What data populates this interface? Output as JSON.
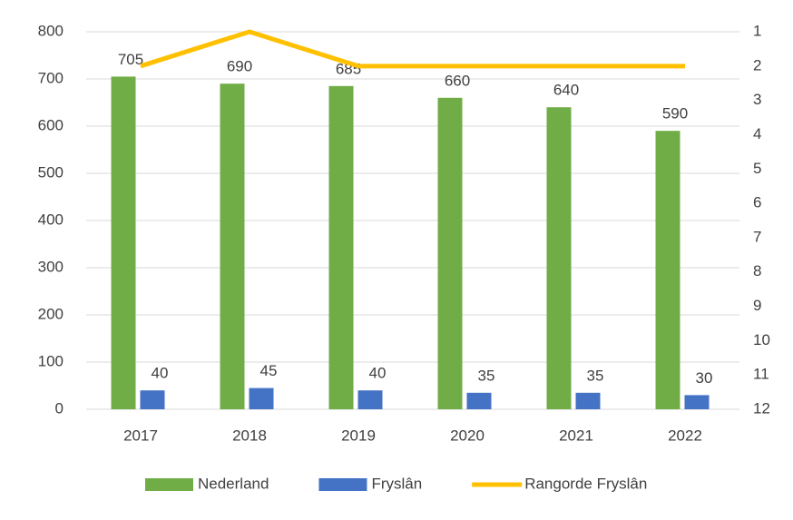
{
  "chart_data": {
    "type": "bar",
    "categories": [
      "2017",
      "2018",
      "2019",
      "2020",
      "2021",
      "2022"
    ],
    "series": [
      {
        "name": "Nederland",
        "color": "#70ad47",
        "values": [
          705,
          690,
          685,
          660,
          640,
          590
        ]
      },
      {
        "name": "Fryslân",
        "color": "#4472c4",
        "values": [
          40,
          45,
          40,
          35,
          35,
          30
        ]
      },
      {
        "name": "Rangorde Fryslân",
        "color": "#ffc000",
        "type": "line",
        "axis": "y2",
        "values": [
          2,
          1,
          2,
          2,
          2,
          2
        ]
      }
    ],
    "ylim": [
      0,
      800
    ],
    "yticks": [
      0,
      100,
      200,
      300,
      400,
      500,
      600,
      700,
      800
    ],
    "y2lim": [
      1,
      12
    ],
    "y2ticks": [
      1,
      2,
      3,
      4,
      5,
      6,
      7,
      8,
      9,
      10,
      11,
      12
    ],
    "y2_reversed": true,
    "grid": true,
    "legend": "bottom",
    "data_labels": true
  }
}
